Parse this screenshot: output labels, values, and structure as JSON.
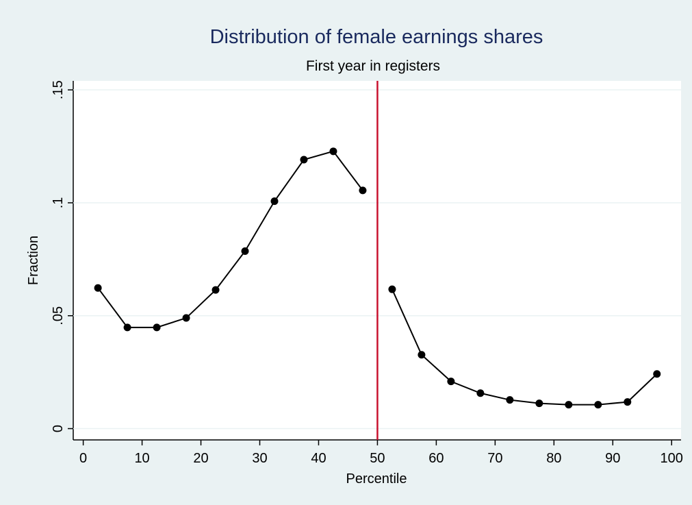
{
  "chart_data": {
    "type": "line",
    "title": "Distribution of female earnings shares",
    "subtitle": "First year in registers",
    "x_label": "Percentile",
    "y_label": "Fraction",
    "x": [
      2.5,
      7.5,
      12.5,
      17.5,
      22.5,
      27.5,
      32.5,
      37.5,
      42.5,
      47.5,
      50,
      52.5,
      57.5,
      62.5,
      67.5,
      72.5,
      77.5,
      82.5,
      87.5,
      92.5,
      97.5
    ],
    "series": [
      {
        "color": "#000000",
        "values": [
          0.0623,
          0.0448,
          0.0448,
          0.049,
          0.0614,
          0.0786,
          0.1007,
          0.1191,
          0.1228,
          0.1055,
          null,
          0.0617,
          0.0327,
          0.0209,
          0.0157,
          0.0127,
          0.0112,
          0.0106,
          0.0106,
          0.0118,
          0.0242
        ]
      }
    ],
    "vline": {
      "value": 50,
      "color": "#c8102e"
    },
    "xlim": [
      -1.7,
      101.6
    ],
    "ylim": [
      -0.005,
      0.154
    ],
    "xticks": [
      0,
      10,
      20,
      30,
      40,
      50,
      60,
      70,
      80,
      90,
      100
    ],
    "yticks": [
      0,
      {
        "value": 0.05,
        "label": ".05"
      },
      {
        "value": 0.1,
        "label": ".1"
      },
      {
        "value": 0.15,
        "label": ".15"
      }
    ],
    "grid": true
  }
}
